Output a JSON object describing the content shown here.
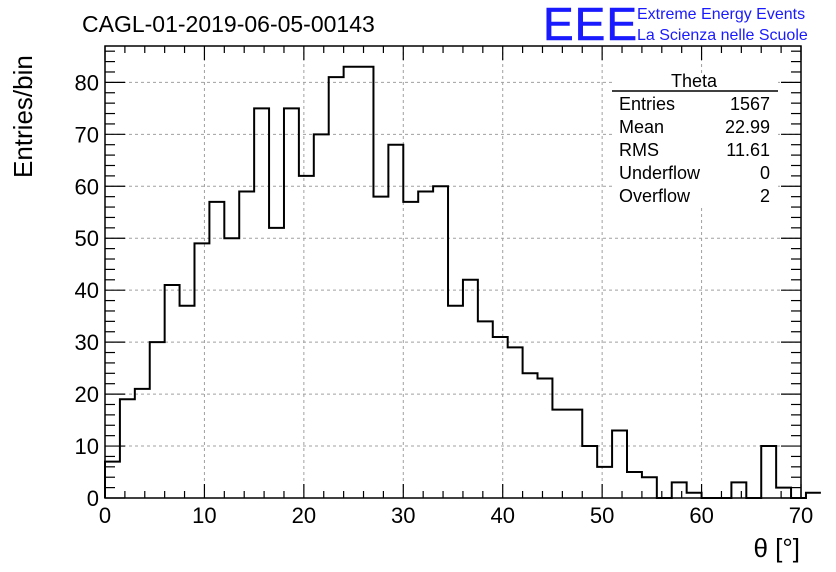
{
  "title": "CAGL-01-2019-06-05-00143",
  "logo": {
    "letters": "EEE",
    "line1": "Extreme Energy Events",
    "line2": "La Scienza nelle Scuole",
    "color": "#1a1aff"
  },
  "stats": {
    "name": "Theta",
    "rows": [
      {
        "label": "Entries",
        "value": "1567"
      },
      {
        "label": "Mean",
        "value": "22.99"
      },
      {
        "label": "RMS",
        "value": "11.61"
      },
      {
        "label": "Underflow",
        "value": "0"
      },
      {
        "label": "Overflow",
        "value": "2"
      }
    ]
  },
  "chart_data": {
    "type": "histogram",
    "title": "CAGL-01-2019-06-05-00143",
    "xlabel": "θ [°]",
    "ylabel": "Entries/bin",
    "xlim": [
      0,
      70
    ],
    "ylim": [
      0,
      87
    ],
    "xticks": [
      0,
      10,
      20,
      30,
      40,
      50,
      60,
      70
    ],
    "yticks": [
      0,
      10,
      20,
      30,
      40,
      50,
      60,
      70,
      80
    ],
    "grid": true,
    "bin_width": 1.5,
    "bin_edges_start": 0,
    "values": [
      7,
      19,
      21,
      30,
      41,
      37,
      49,
      57,
      50,
      59,
      75,
      52,
      75,
      62,
      70,
      81,
      83,
      83,
      58,
      68,
      57,
      59,
      60,
      37,
      42,
      34,
      31,
      29,
      24,
      23,
      17,
      17,
      10,
      6,
      13,
      5,
      4,
      0,
      3,
      1,
      0,
      0,
      3,
      0,
      10,
      2,
      0,
      1
    ]
  }
}
